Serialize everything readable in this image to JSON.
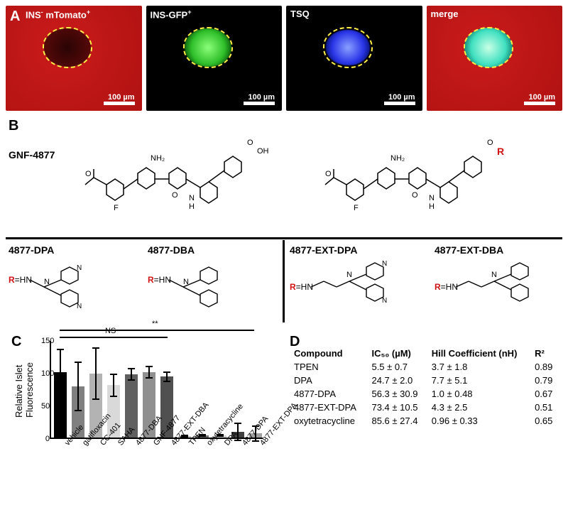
{
  "panel_a": {
    "letter": "A",
    "images": [
      {
        "label_html": "INS<sup>-</sup> mTomato<sup>+</sup>",
        "scalebar": "100 µm",
        "type": "red"
      },
      {
        "label_html": "INS-GFP<sup>+</sup>",
        "scalebar": "100 µm",
        "type": "green"
      },
      {
        "label_html": "TSQ",
        "scalebar": "100 µm",
        "type": "blue"
      },
      {
        "label_html": "merge",
        "scalebar": "100 µm",
        "type": "merge"
      }
    ]
  },
  "panel_b": {
    "letter": "B",
    "parent": "GNF-4877",
    "compounds": [
      {
        "name": "4877-DPA"
      },
      {
        "name": "4877-DBA"
      },
      {
        "name": "4877-EXT-DPA"
      },
      {
        "name": "4877-EXT-DBA"
      }
    ]
  },
  "panel_c": {
    "letter": "C",
    "type": "bar",
    "ylabel": "Relative Islet\nFluorescence",
    "ylim": [
      0,
      150
    ],
    "ytick_step": 50,
    "categories": [
      "vehicle",
      "gatifloxacin",
      "CC-401",
      "SAHA",
      "4877-DBA",
      "GNF-4877",
      "4877-EXT-DBA",
      "TPEN",
      "oxytetracycline",
      "DPA",
      "4877-DPA",
      "4877-EXT-DPA"
    ],
    "values": [
      100,
      78,
      98,
      80,
      97,
      100,
      93,
      2,
      3,
      3,
      9,
      6
    ],
    "errors": [
      36,
      38,
      40,
      18,
      10,
      10,
      8,
      2,
      2,
      2,
      14,
      13
    ],
    "bar_colors": [
      "#000000",
      "#808080",
      "#b3b3b3",
      "#d9d9d9",
      "#606060",
      "#909090",
      "#505050",
      "#c0c0c0",
      "#707070",
      "#d0d0d0",
      "#404040",
      "#a0a0a0"
    ],
    "sig": {
      "ns_label": "NS",
      "star_label": "**"
    },
    "background_color": "#ffffff"
  },
  "panel_d": {
    "letter": "D",
    "columns": [
      "Compound",
      "IC₅₀ (µM)",
      "Hill Coefficient (nH)",
      "R²"
    ],
    "rows": [
      [
        "TPEN",
        "5.5 ± 0.7",
        "3.7 ± 1.8",
        "0.89"
      ],
      [
        "DPA",
        "24.7 ± 2.0",
        "7.7 ± 5.1",
        "0.79"
      ],
      [
        "4877-DPA",
        "56.3 ± 30.9",
        "1.0 ± 0.48",
        "0.67"
      ],
      [
        "4877-EXT-DPA",
        "73.4 ± 10.5",
        "4.3 ± 2.5",
        "0.51"
      ],
      [
        "oxytetracycline",
        "85.6 ± 27.4",
        "0.96 ± 0.33",
        "0.65"
      ]
    ]
  }
}
